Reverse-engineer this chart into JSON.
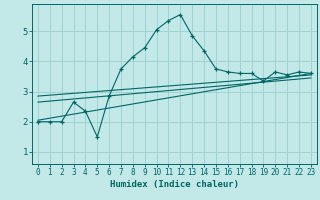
{
  "xlabel": "Humidex (Indice chaleur)",
  "background_color": "#c2e8e8",
  "grid_color": "#9ecece",
  "line_color": "#006666",
  "xlim": [
    -0.5,
    23.5
  ],
  "ylim": [
    0.6,
    5.9
  ],
  "yticks": [
    1,
    2,
    3,
    4,
    5
  ],
  "xticks": [
    0,
    1,
    2,
    3,
    4,
    5,
    6,
    7,
    8,
    9,
    10,
    11,
    12,
    13,
    14,
    15,
    16,
    17,
    18,
    19,
    20,
    21,
    22,
    23
  ],
  "main_x": [
    0,
    1,
    2,
    3,
    4,
    5,
    6,
    7,
    8,
    9,
    10,
    11,
    12,
    13,
    14,
    15,
    16,
    17,
    18,
    19,
    20,
    21,
    22,
    23
  ],
  "main_y": [
    2.0,
    2.0,
    2.0,
    2.65,
    2.35,
    1.5,
    2.85,
    3.75,
    4.15,
    4.45,
    5.05,
    5.35,
    5.55,
    4.85,
    4.35,
    3.75,
    3.65,
    3.6,
    3.6,
    3.35,
    3.65,
    3.55,
    3.65,
    3.6
  ],
  "line2_x": [
    0,
    23
  ],
  "line2_y": [
    2.05,
    3.6
  ],
  "line3_x": [
    0,
    23
  ],
  "line3_y": [
    2.65,
    3.45
  ],
  "line4_x": [
    0,
    23
  ],
  "line4_y": [
    2.85,
    3.55
  ]
}
